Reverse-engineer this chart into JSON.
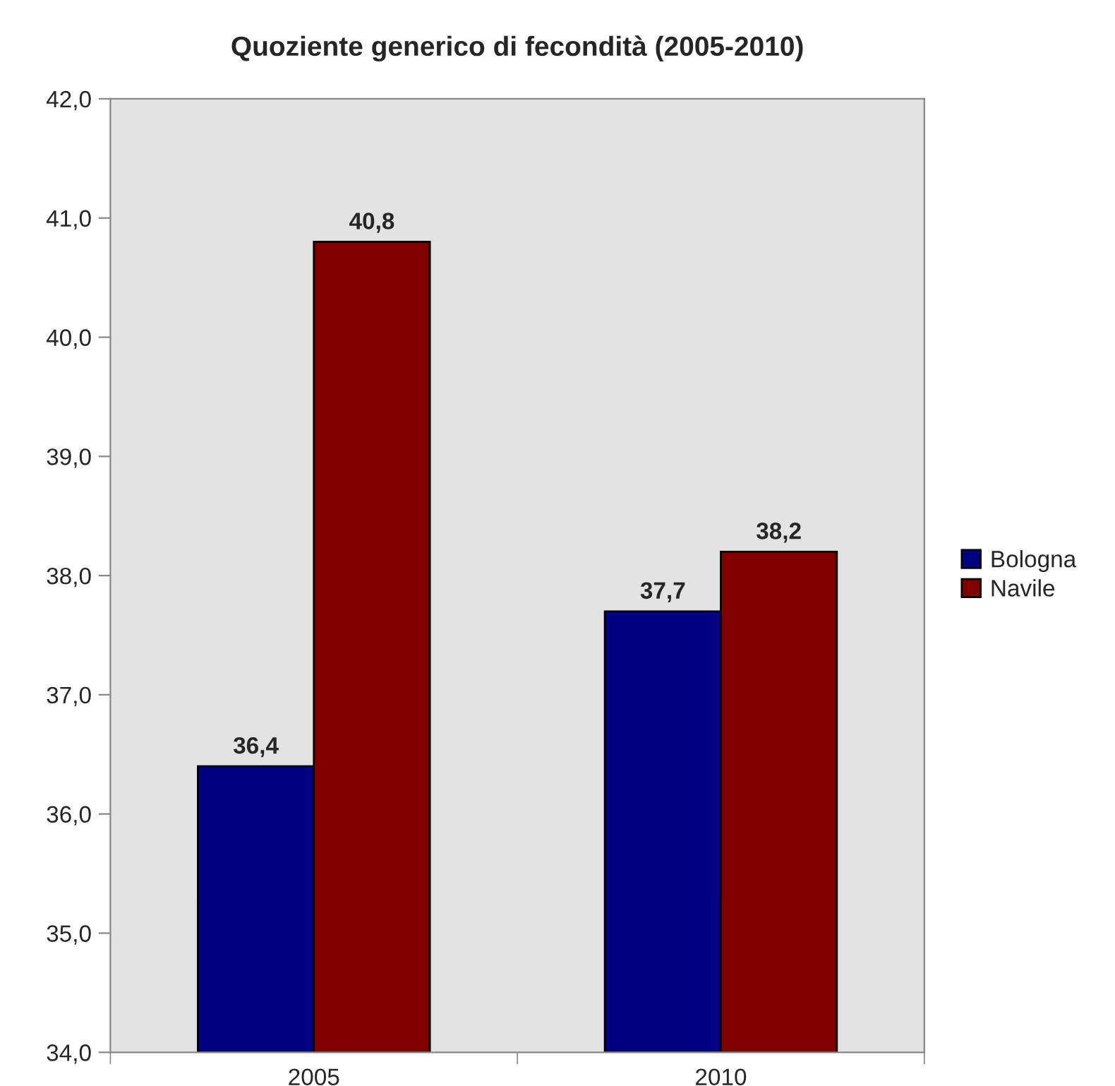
{
  "chart_data": {
    "type": "bar",
    "title": "Quoziente generico di fecondità (2005-2010)",
    "categories": [
      "2005",
      "2010"
    ],
    "series": [
      {
        "name": "Bologna",
        "color": "#000080",
        "values": [
          36.4,
          37.7
        ],
        "value_labels": [
          "36,4",
          "37,7"
        ]
      },
      {
        "name": "Navile",
        "color": "#800000",
        "values": [
          40.8,
          38.2
        ],
        "value_labels": [
          "40,8",
          "38,2"
        ]
      }
    ],
    "ylim": [
      34,
      42
    ],
    "yticks": [
      {
        "value": 34,
        "label": "34,0"
      },
      {
        "value": 35,
        "label": "35,0"
      },
      {
        "value": 36,
        "label": "36,0"
      },
      {
        "value": 37,
        "label": "37,0"
      },
      {
        "value": 38,
        "label": "38,0"
      },
      {
        "value": 39,
        "label": "39,0"
      },
      {
        "value": 40,
        "label": "40,0"
      },
      {
        "value": 41,
        "label": "41,0"
      },
      {
        "value": 42,
        "label": "42,0"
      }
    ],
    "grid": false,
    "legend": "right"
  }
}
